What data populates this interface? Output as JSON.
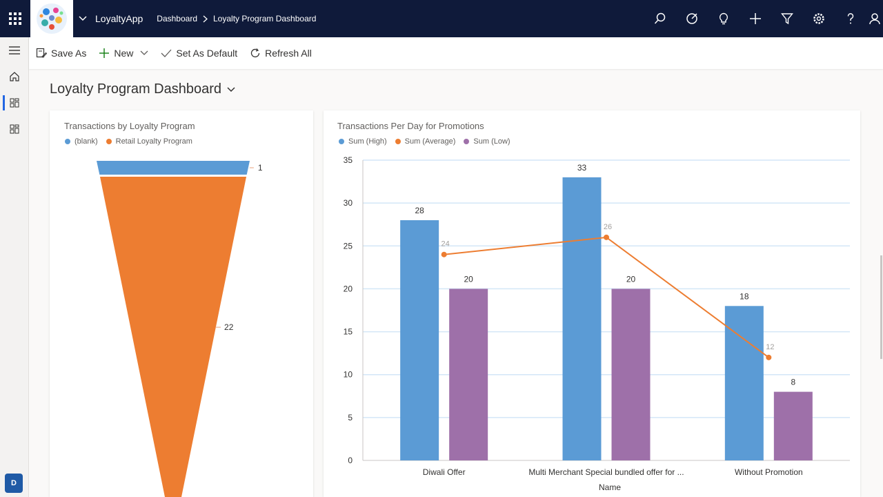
{
  "app": {
    "name": "LoyaltyApp",
    "breadcrumb": [
      "Dashboard",
      "Loyalty Program Dashboard"
    ]
  },
  "topbar_icons": [
    "search-icon",
    "target-icon",
    "lightbulb-icon",
    "plus-icon",
    "filter-icon",
    "gear-icon",
    "help-icon",
    "person-icon"
  ],
  "commands": {
    "save_as": "Save As",
    "new": "New",
    "set_default": "Set As Default",
    "refresh_all": "Refresh All"
  },
  "page_title": "Loyalty Program Dashboard",
  "user_initial": "D",
  "colors": {
    "nav_bg": "#0f1a3a",
    "blue": "#5b9bd5",
    "orange": "#ed7d31",
    "purple": "#9e70a9",
    "accent": "#2266e3"
  },
  "chart_data": [
    {
      "type": "funnel",
      "title": "Transactions by Loyalty Program",
      "legend": [
        "(blank)",
        "Retail Loyalty Program"
      ],
      "categories": [
        "(blank)",
        "Retail Loyalty Program"
      ],
      "values": [
        1,
        22
      ],
      "data_labels": [
        "1",
        "22"
      ]
    },
    {
      "type": "bar",
      "title": "Transactions Per Day for Promotions",
      "legend": [
        "Sum (High)",
        "Sum (Average)",
        "Sum (Low)"
      ],
      "categories": [
        "Diwali Offer",
        "Multi Merchant Special bundled offer for ...",
        "Without Promotion"
      ],
      "series": [
        {
          "name": "Sum (High)",
          "kind": "bar",
          "values": [
            28,
            33,
            18
          ]
        },
        {
          "name": "Sum (Average)",
          "kind": "line",
          "values": [
            24,
            26,
            12
          ]
        },
        {
          "name": "Sum (Low)",
          "kind": "bar",
          "values": [
            20,
            20,
            8
          ]
        }
      ],
      "xlabel": "Name",
      "ylabel": "",
      "ylim": [
        0,
        35
      ],
      "yticks": [
        0,
        5,
        10,
        15,
        20,
        25,
        30,
        35
      ]
    }
  ]
}
